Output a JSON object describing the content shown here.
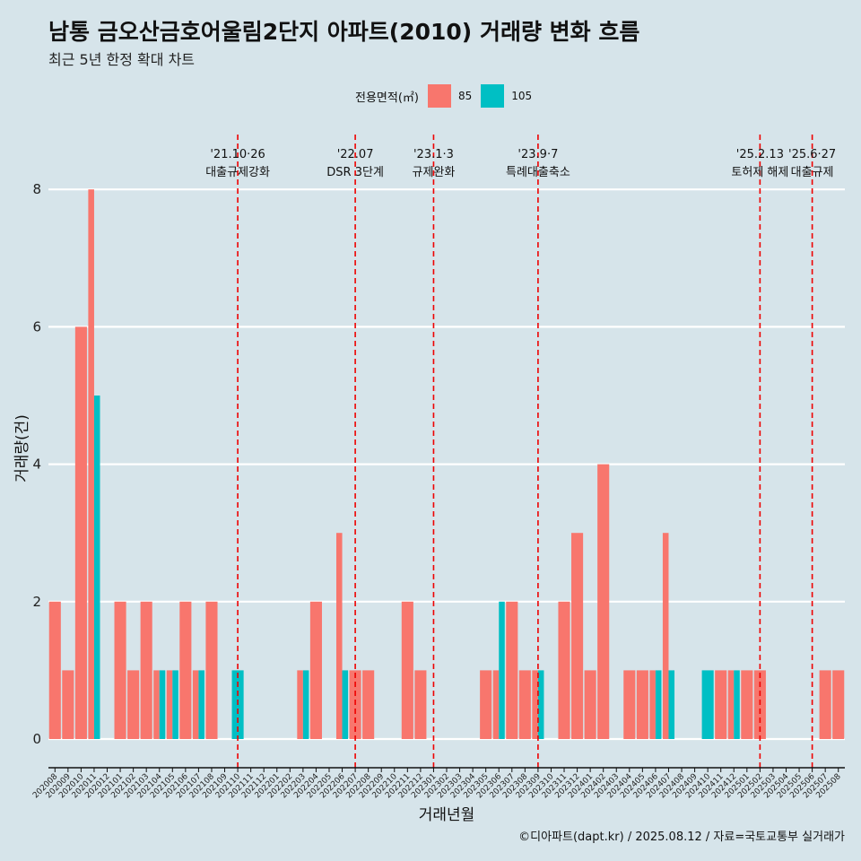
{
  "title": "남통 금오산금호어울림2단지 아파트(2010) 거래량 변화 흐름",
  "subtitle": "최근 5년 한정 확대 차트",
  "caption": "©디아파트(dapt.kr) / 2025.08.12 / 자료=국토교통부 실거래가",
  "legend": {
    "title": "전용면적(㎡)",
    "items": [
      {
        "label": "85",
        "color": "#f8766d"
      },
      {
        "label": "105",
        "color": "#00bfc4"
      }
    ]
  },
  "chart_data": {
    "type": "bar",
    "xlabel": "거래년월",
    "ylabel": "거래량(건)",
    "ylim": [
      0,
      8.8
    ],
    "yticks": [
      0,
      2,
      4,
      6,
      8
    ],
    "grid": true,
    "legend_position": "top",
    "categories": [
      "202008",
      "202009",
      "202010",
      "202011",
      "202012",
      "202101",
      "202102",
      "202103",
      "202104",
      "202105",
      "202106",
      "202107",
      "202108",
      "202109",
      "202110",
      "202111",
      "202112",
      "202201",
      "202202",
      "202203",
      "202204",
      "202205",
      "202206",
      "202207",
      "202208",
      "202209",
      "202210",
      "202211",
      "202212",
      "202301",
      "202302",
      "202303",
      "202304",
      "202305",
      "202306",
      "202307",
      "202308",
      "202309",
      "202310",
      "202311",
      "202312",
      "202401",
      "202402",
      "202403",
      "202404",
      "202405",
      "202406",
      "202407",
      "202408",
      "202409",
      "202410",
      "202411",
      "202412",
      "202501",
      "202502",
      "202503",
      "202504",
      "202505",
      "202506",
      "202507",
      "202508"
    ],
    "series": [
      {
        "name": "85",
        "color": "#f8766d",
        "values": [
          2,
          1,
          6,
          8,
          0,
          2,
          1,
          2,
          1,
          1,
          2,
          1,
          2,
          0,
          0,
          0,
          0,
          0,
          0,
          1,
          2,
          0,
          3,
          1,
          1,
          0,
          0,
          2,
          1,
          0,
          0,
          0,
          0,
          1,
          1,
          2,
          1,
          1,
          0,
          2,
          3,
          1,
          4,
          0,
          1,
          1,
          1,
          3,
          0,
          0,
          0,
          1,
          1,
          1,
          1,
          0,
          0,
          0,
          0,
          1,
          1
        ]
      },
      {
        "name": "105",
        "color": "#00bfc4",
        "values": [
          0,
          0,
          0,
          5,
          0,
          0,
          0,
          0,
          1,
          1,
          0,
          1,
          0,
          0,
          1,
          0,
          0,
          0,
          0,
          1,
          0,
          0,
          1,
          0,
          0,
          0,
          0,
          0,
          0,
          0,
          0,
          0,
          0,
          0,
          2,
          0,
          0,
          1,
          0,
          0,
          0,
          0,
          0,
          0,
          0,
          0,
          1,
          1,
          0,
          0,
          1,
          0,
          1,
          0,
          0,
          0,
          0,
          0,
          0,
          0,
          0
        ]
      }
    ],
    "events": [
      {
        "date": "'21.10·26",
        "label": "대출규제강화",
        "at": "202110"
      },
      {
        "date": "'22.07",
        "label": "DSR 3단계",
        "at": "202207"
      },
      {
        "date": "'23.1·3",
        "label": "규제완화",
        "at": "202301"
      },
      {
        "date": "'23.9·7",
        "label": "특례대출축소",
        "at": "202309"
      },
      {
        "date": "'25.2.13",
        "label": "토허제 해제",
        "at": "202502"
      },
      {
        "date": "'25.6·27",
        "label": "대출규제",
        "at": "202506"
      }
    ]
  }
}
